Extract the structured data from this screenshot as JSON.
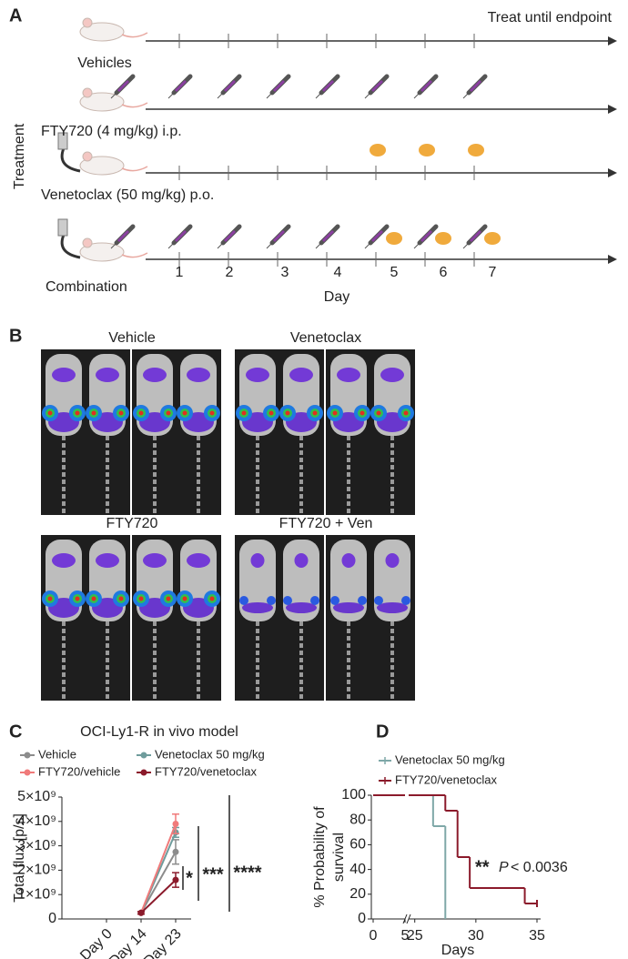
{
  "panel_labels": [
    "A",
    "B",
    "C",
    "D"
  ],
  "panel_a": {
    "header": "Treat until endpoint",
    "side_label": "Treatment",
    "groups": [
      "Vehicles",
      "FTY720 (4 mg/kg) i.p.",
      "Venetoclax (50 mg/kg) p.o.",
      "Combination"
    ],
    "days": [
      1,
      2,
      3,
      4,
      5,
      6,
      7
    ],
    "x_label": "Day"
  },
  "panel_b": {
    "groups": [
      "Vehicle",
      "Venetoclax",
      "FTY720",
      "FTY720 + Ven"
    ]
  },
  "chart_data": [
    {
      "type": "line",
      "title": "OCI-Ly1-R in vivo model",
      "y_label": "Total flux [p/s]",
      "categories": [
        "Day 0",
        "Day 14",
        "Day 23"
      ],
      "series": [
        {
          "name": "Vehicle",
          "color": "#8c8c8c",
          "values": [
            null,
            250000000,
            2750000000
          ],
          "errors": [
            null,
            50000000,
            500000000
          ]
        },
        {
          "name": "Venetoclax 50 mg/kg",
          "color": "#6f9c9c",
          "values": [
            null,
            250000000,
            3550000000
          ],
          "errors": [
            null,
            50000000,
            200000000
          ]
        },
        {
          "name": "FTY720/vehicle",
          "color": "#f07a7a",
          "values": [
            null,
            250000000,
            3900000000
          ],
          "errors": [
            null,
            50000000,
            400000000
          ]
        },
        {
          "name": "FTY720/venetoclax",
          "color": "#8b1a2b",
          "values": [
            null,
            250000000,
            1600000000
          ],
          "errors": [
            null,
            50000000,
            300000000
          ]
        }
      ],
      "ylim": [
        0,
        5000000000
      ],
      "yticks": [
        0,
        {
          "value": 1000000000,
          "label": "1×10⁹"
        },
        {
          "value": 2000000000,
          "label": "2×10⁹"
        },
        {
          "value": 3000000000,
          "label": "3×10⁹"
        },
        {
          "value": 4000000000,
          "label": "4×10⁹"
        },
        {
          "value": 5000000000,
          "label": "5×10⁹"
        }
      ],
      "annotations": [
        "*",
        "***",
        "****"
      ]
    },
    {
      "type": "step",
      "x_label": "Days",
      "y_label": [
        "% Probability of",
        "survival"
      ],
      "series": [
        {
          "name": "Venetoclax 50 mg/kg",
          "color": "#7fa8a8",
          "x": [
            0,
            26.5,
            27.5
          ],
          "values": [
            100,
            75,
            0
          ]
        },
        {
          "name": "FTY720/venetoclax",
          "color": "#8b1a2b",
          "x": [
            0,
            27.5,
            28.5,
            29.5,
            34,
            35
          ],
          "values": [
            100,
            87.5,
            50,
            25,
            12.5,
            12.5
          ]
        }
      ],
      "xlim": [
        0,
        35
      ],
      "xbreak": [
        5,
        24.5
      ],
      "xticks": [
        0,
        5,
        25,
        30,
        35
      ],
      "ylim": [
        0,
        100
      ],
      "yticks": [
        0,
        20,
        40,
        60,
        80,
        100
      ],
      "annotation": "**",
      "p_symbol": "P",
      "p_value": "< 0.0036"
    }
  ]
}
